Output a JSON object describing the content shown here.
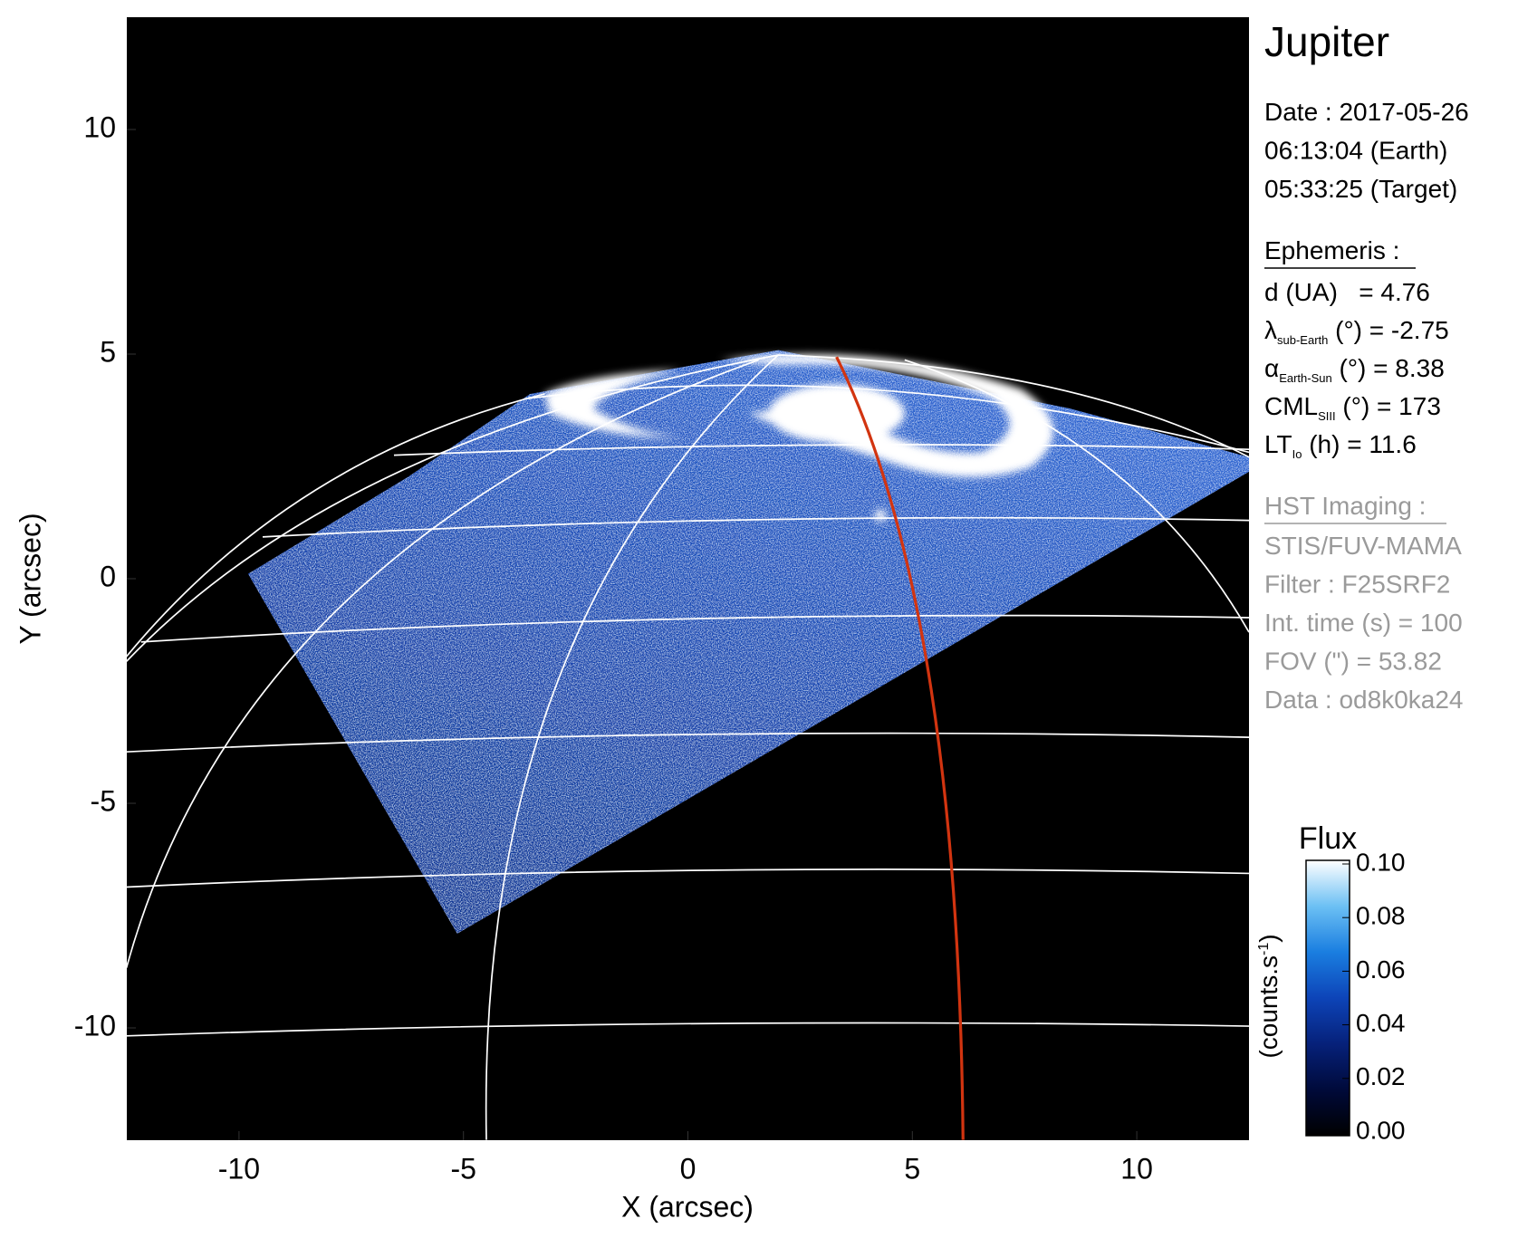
{
  "chart_data": {
    "type": "image",
    "xlabel": "X (arcsec)",
    "ylabel": "Y (arcsec)",
    "xlim": [
      -12.5,
      12.5
    ],
    "ylim": [
      -12.5,
      12.5
    ],
    "xticks": [
      -10,
      -5,
      0,
      5,
      10
    ],
    "yticks": [
      -10,
      -5,
      0,
      5,
      10
    ],
    "colorbar": {
      "title": "Flux",
      "unit": "(counts.s",
      "unit_superscript": "-1",
      "unit_close": ")",
      "lim": [
        0,
        0.1
      ],
      "ticks": [
        {
          "value": 0,
          "label": "0.00"
        },
        {
          "value": 0.02,
          "label": "0.02"
        },
        {
          "value": 0.04,
          "label": "0.04"
        },
        {
          "value": 0.06,
          "label": "0.06"
        },
        {
          "value": 0.08,
          "label": "0.08"
        },
        {
          "value": 0.1,
          "label": "0.10"
        }
      ],
      "colormap": [
        "#000000",
        "#000a3a",
        "#06217a",
        "#0d44b8",
        "#1a7ee0",
        "#6cc0f4",
        "#ffffff"
      ]
    }
  },
  "panel": {
    "title": "Jupiter",
    "date": [
      "Date : 2017-05-26",
      "06:13:04 (Earth)",
      "05:33:25 (Target)"
    ],
    "ephemeris": {
      "heading": "Ephemeris :",
      "rows": [
        {
          "symbol": "d (UA)",
          "text": "   = 4.76"
        },
        {
          "symbol": "λ",
          "sub": "sub-Earth",
          "text": " (°) = -2.75"
        },
        {
          "symbol": "α",
          "sub": "Earth-Sun",
          "text": " (°) = 8.38"
        },
        {
          "symbol": "CML",
          "sub": "SIII",
          "text": " (°) = 173"
        },
        {
          "symbol": "LT",
          "sub": "Io",
          "text": " (h) = 11.6"
        }
      ]
    },
    "imaging": {
      "heading": "HST Imaging :",
      "rows": [
        "STIS/FUV-MAMA",
        "Filter : F25SRF2",
        "Int. time (s) = 100",
        "FOV (\") = 53.82",
        "Data : od8k0ka24"
      ]
    }
  }
}
